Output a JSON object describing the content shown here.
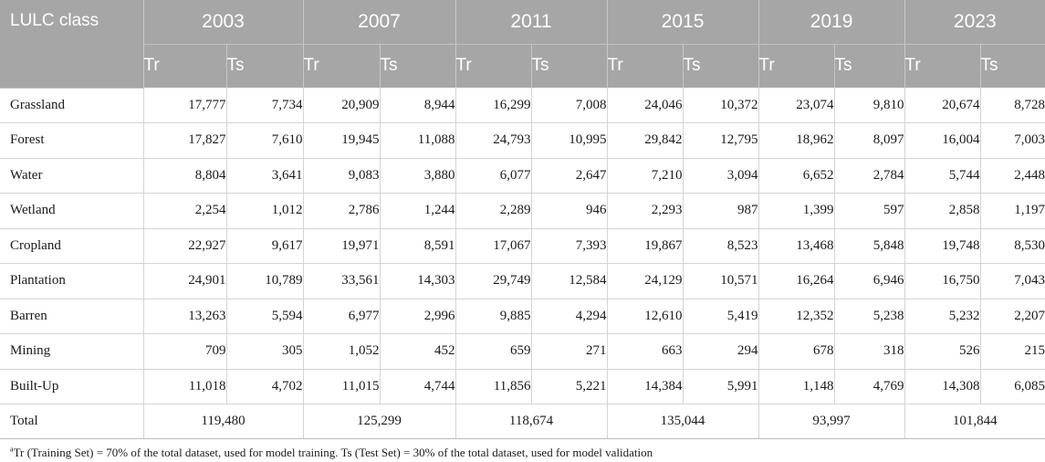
{
  "header": {
    "class_label": "LULC class",
    "years": [
      "2003",
      "2007",
      "2011",
      "2015",
      "2019",
      "2023"
    ],
    "sub_tr": "Tr",
    "sub_ts": "Ts"
  },
  "rows": [
    {
      "cls": "Grassland",
      "v": [
        "17,777",
        "7,734",
        "20,909",
        "8,944",
        "16,299",
        "7,008",
        "24,046",
        "10,372",
        "23,074",
        "9,810",
        "20,674",
        "8,728"
      ]
    },
    {
      "cls": "Forest",
      "v": [
        "17,827",
        "7,610",
        "19,945",
        "11,088",
        "24,793",
        "10,995",
        "29,842",
        "12,795",
        "18,962",
        "8,097",
        "16,004",
        "7,003"
      ]
    },
    {
      "cls": "Water",
      "v": [
        "8,804",
        "3,641",
        "9,083",
        "3,880",
        "6,077",
        "2,647",
        "7,210",
        "3,094",
        "6,652",
        "2,784",
        "5,744",
        "2,448"
      ]
    },
    {
      "cls": "Wetland",
      "v": [
        "2,254",
        "1,012",
        "2,786",
        "1,244",
        "2,289",
        "946",
        "2,293",
        "987",
        "1,399",
        "597",
        "2,858",
        "1,197"
      ]
    },
    {
      "cls": "Cropland",
      "v": [
        "22,927",
        "9,617",
        "19,971",
        "8,591",
        "17,067",
        "7,393",
        "19,867",
        "8,523",
        "13,468",
        "5,848",
        "19,748",
        "8,530"
      ]
    },
    {
      "cls": "Plantation",
      "v": [
        "24,901",
        "10,789",
        "33,561",
        "14,303",
        "29,749",
        "12,584",
        "24,129",
        "10,571",
        "16,264",
        "6,946",
        "16,750",
        "7,043"
      ]
    },
    {
      "cls": "Barren",
      "v": [
        "13,263",
        "5,594",
        "6,977",
        "2,996",
        "9,885",
        "4,294",
        "12,610",
        "5,419",
        "12,352",
        "5,238",
        "5,232",
        "2,207"
      ]
    },
    {
      "cls": "Mining",
      "v": [
        "709",
        "305",
        "1,052",
        "452",
        "659",
        "271",
        "663",
        "294",
        "678",
        "318",
        "526",
        "215"
      ]
    },
    {
      "cls": "Built-Up",
      "v": [
        "11,018",
        "4,702",
        "11,015",
        "4,744",
        "11,856",
        "5,221",
        "14,384",
        "5,991",
        "1,148",
        "4,769",
        "14,308",
        "6,085"
      ]
    }
  ],
  "total": {
    "label": "Total",
    "values": [
      "119,480",
      "125,299",
      "118,674",
      "135,044",
      "93,997",
      "101,844"
    ]
  },
  "footnote": {
    "marker": "a",
    "text": "Tr (Training Set) = 70% of the total dataset, used for model training. Ts (Test Set) = 30% of the total dataset, used for model validation"
  }
}
